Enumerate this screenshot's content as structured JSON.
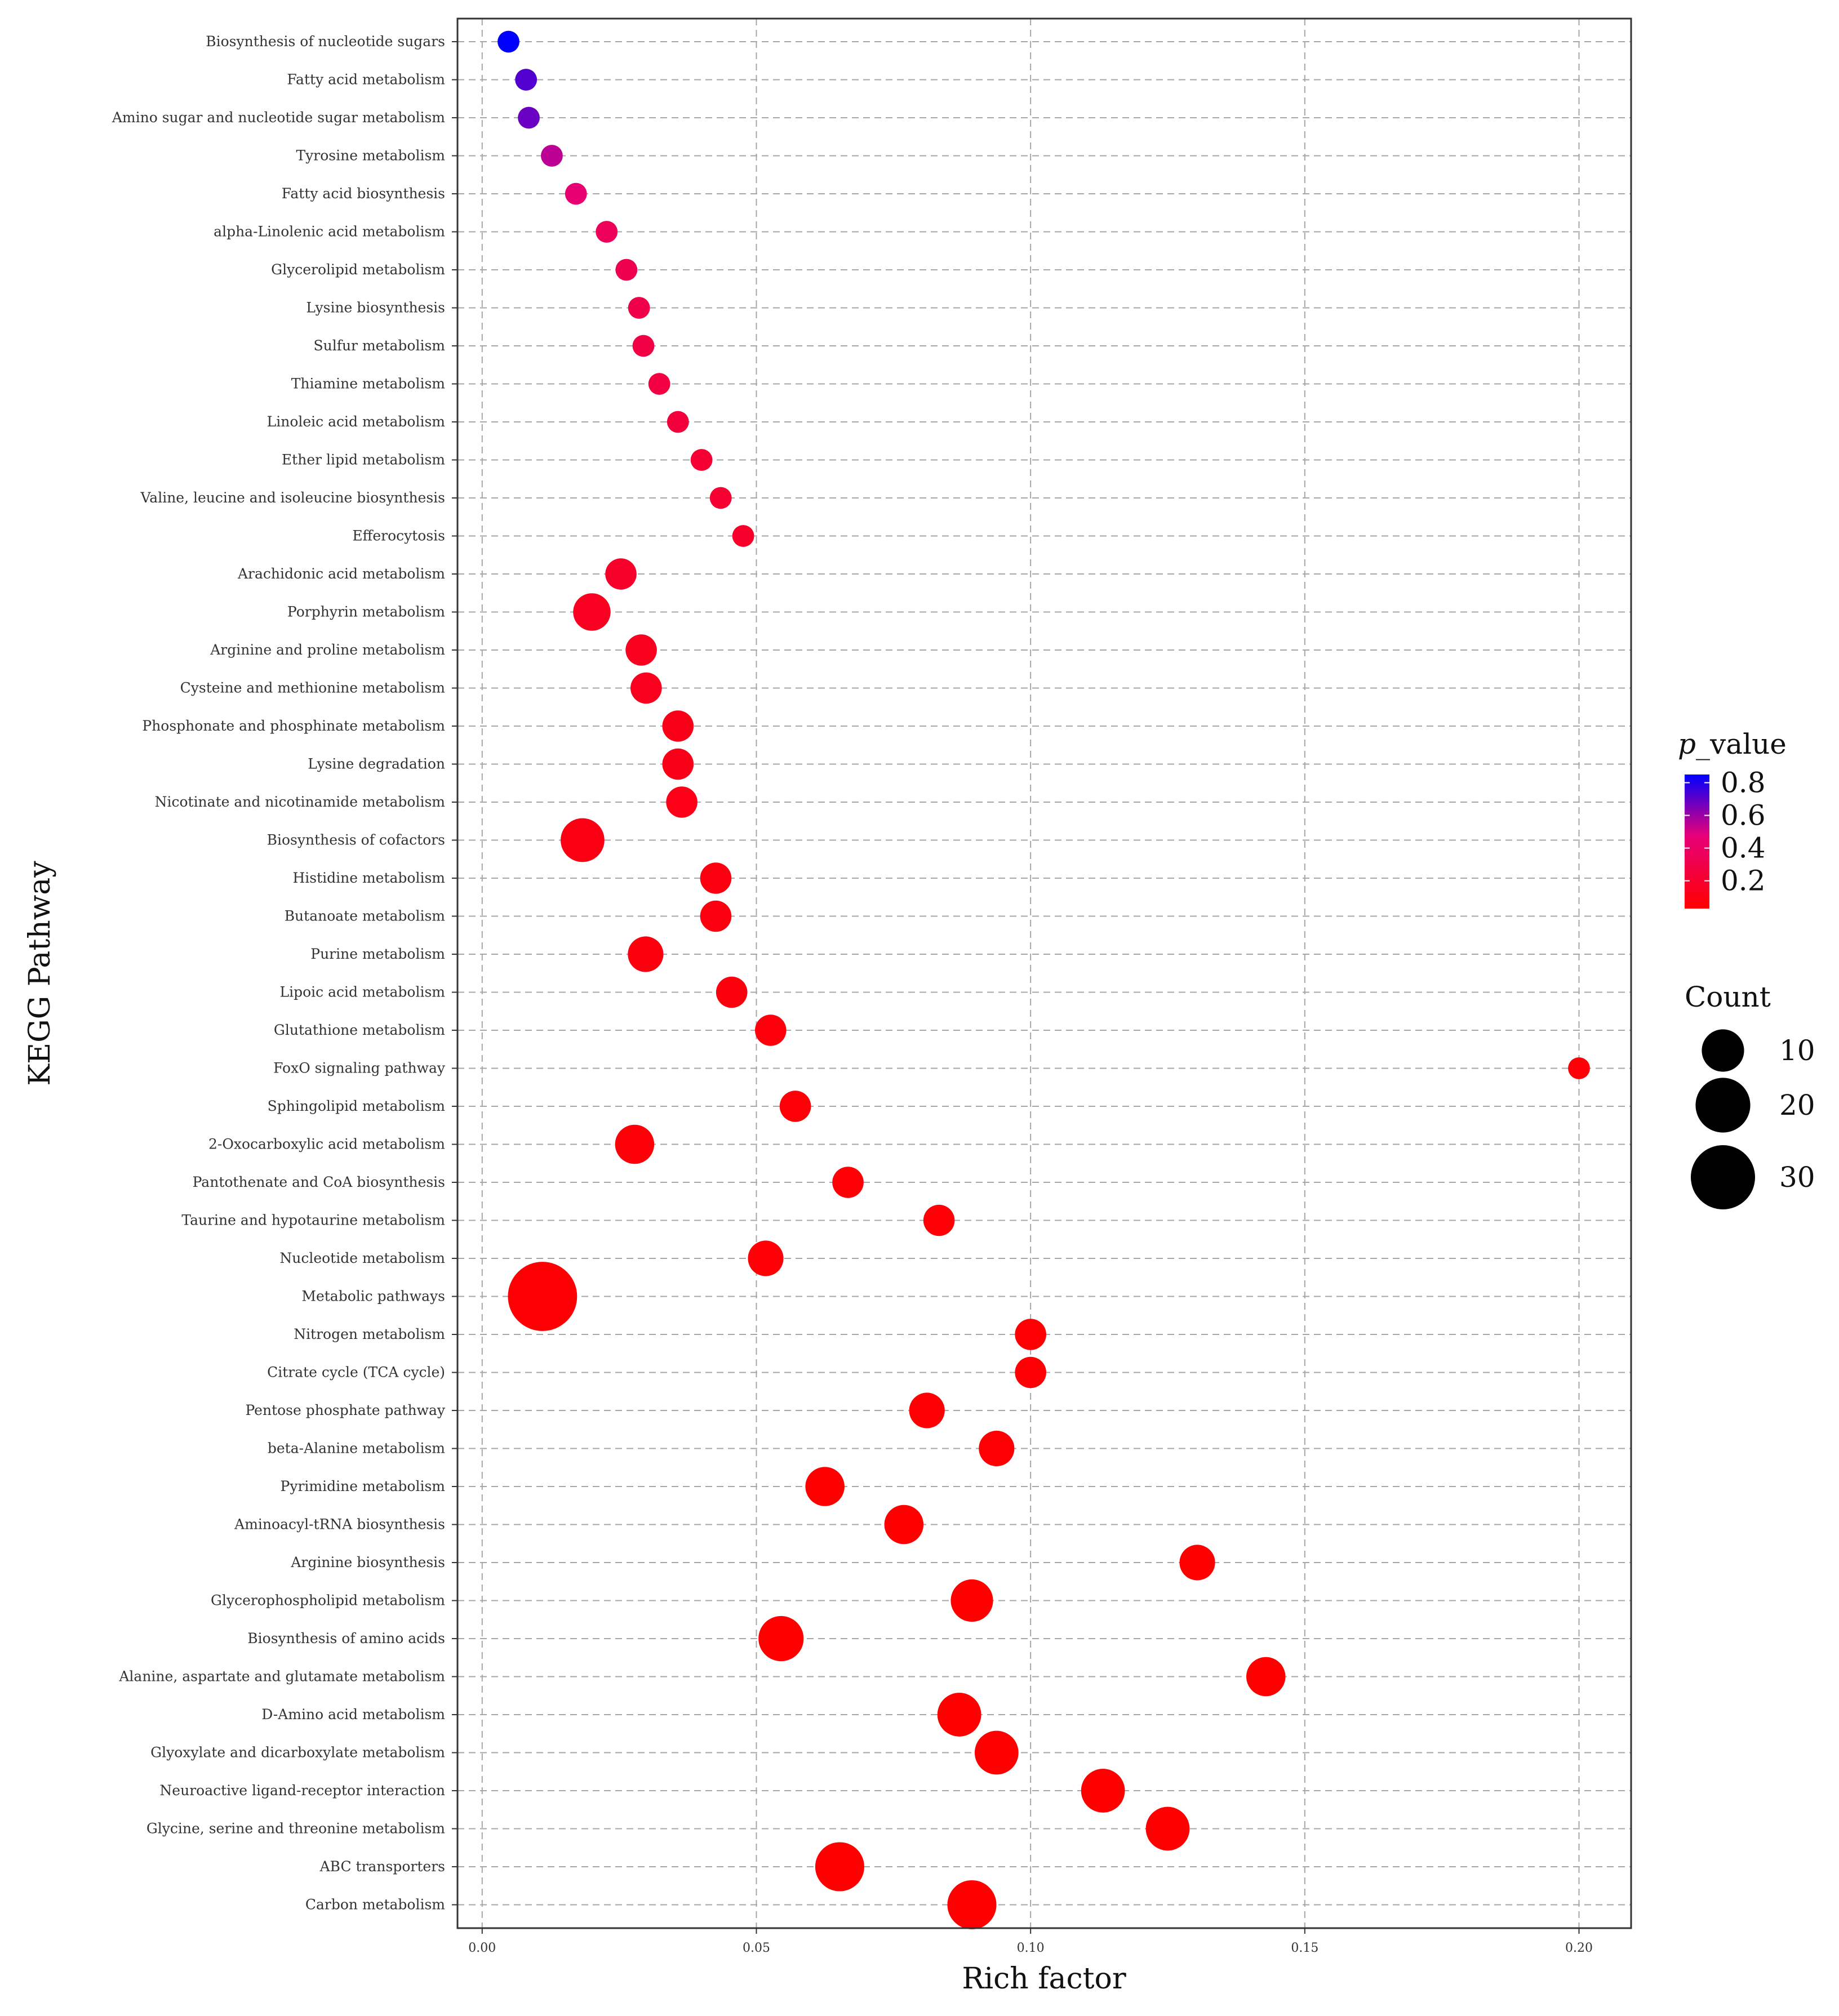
{
  "chart_data": {
    "type": "scatter",
    "title": "",
    "xlabel": "Rich factor",
    "ylabel": "KEGG Pathway",
    "xlim": [
      -0.0045,
      0.2095
    ],
    "x_ticks": [
      0.0,
      0.05,
      0.1,
      0.15,
      0.2
    ],
    "x_tick_labels": [
      "0.00",
      "0.05",
      "0.10",
      "0.15",
      "0.20"
    ],
    "grid": true,
    "legend_position": "right",
    "color_legend": {
      "title_italic": "p",
      "title_rest": "_value",
      "range": [
        0.03,
        0.85
      ],
      "labels": [
        "0.8",
        "0.6",
        "0.4",
        "0.2"
      ],
      "values": [
        0.8,
        0.6,
        0.4,
        0.2
      ],
      "low_color": "#ff0000",
      "mid_color": "#e6007a",
      "high_color": "#0000ff"
    },
    "size_legend": {
      "title": "Count",
      "labels": [
        "10",
        "20",
        "30"
      ],
      "values": [
        10,
        20,
        30
      ]
    },
    "points": [
      {
        "pathway": "Biosynthesis of nucleotide sugars",
        "rich_factor": 0.0048,
        "count": 1,
        "p_value": 0.85
      },
      {
        "pathway": "Fatty acid metabolism",
        "rich_factor": 0.008,
        "count": 1,
        "p_value": 0.72
      },
      {
        "pathway": "Amino sugar and nucleotide sugar metabolism",
        "rich_factor": 0.0085,
        "count": 1,
        "p_value": 0.68
      },
      {
        "pathway": "Tyrosine metabolism",
        "rich_factor": 0.0127,
        "count": 1,
        "p_value": 0.55
      },
      {
        "pathway": "Fatty acid biosynthesis",
        "rich_factor": 0.0171,
        "count": 1,
        "p_value": 0.45
      },
      {
        "pathway": "alpha-Linolenic acid metabolism",
        "rich_factor": 0.0227,
        "count": 1,
        "p_value": 0.36
      },
      {
        "pathway": "Glycerolipid metabolism",
        "rich_factor": 0.0263,
        "count": 1,
        "p_value": 0.32
      },
      {
        "pathway": "Lysine biosynthesis",
        "rich_factor": 0.0286,
        "count": 1,
        "p_value": 0.3
      },
      {
        "pathway": "Sulfur metabolism",
        "rich_factor": 0.0294,
        "count": 1,
        "p_value": 0.29
      },
      {
        "pathway": "Thiamine metabolism",
        "rich_factor": 0.0323,
        "count": 1,
        "p_value": 0.27
      },
      {
        "pathway": "Linoleic acid metabolism",
        "rich_factor": 0.0357,
        "count": 1,
        "p_value": 0.25
      },
      {
        "pathway": "Ether lipid metabolism",
        "rich_factor": 0.04,
        "count": 1,
        "p_value": 0.22
      },
      {
        "pathway": "Valine, leucine and isoleucine biosynthesis",
        "rich_factor": 0.0435,
        "count": 1,
        "p_value": 0.21
      },
      {
        "pathway": "Efferocytosis",
        "rich_factor": 0.0476,
        "count": 1,
        "p_value": 0.19
      },
      {
        "pathway": "Arachidonic acid metabolism",
        "rich_factor": 0.0253,
        "count": 4,
        "p_value": 0.18
      },
      {
        "pathway": "Porphyrin metabolism",
        "rich_factor": 0.02,
        "count": 7,
        "p_value": 0.15
      },
      {
        "pathway": "Arginine and proline metabolism",
        "rich_factor": 0.029,
        "count": 4,
        "p_value": 0.14
      },
      {
        "pathway": "Cysteine and methionine metabolism",
        "rich_factor": 0.0299,
        "count": 4,
        "p_value": 0.14
      },
      {
        "pathway": "Phosphonate and phosphinate metabolism",
        "rich_factor": 0.0357,
        "count": 4,
        "p_value": 0.12
      },
      {
        "pathway": "Lysine degradation",
        "rich_factor": 0.0357,
        "count": 4,
        "p_value": 0.12
      },
      {
        "pathway": "Nicotinate and nicotinamide metabolism",
        "rich_factor": 0.0364,
        "count": 4,
        "p_value": 0.11
      },
      {
        "pathway": "Biosynthesis of cofactors",
        "rich_factor": 0.0183,
        "count": 11,
        "p_value": 0.1
      },
      {
        "pathway": "Histidine metabolism",
        "rich_factor": 0.0426,
        "count": 4,
        "p_value": 0.09
      },
      {
        "pathway": "Butanoate metabolism",
        "rich_factor": 0.0426,
        "count": 4,
        "p_value": 0.09
      },
      {
        "pathway": "Purine metabolism",
        "rich_factor": 0.0298,
        "count": 6,
        "p_value": 0.08
      },
      {
        "pathway": "Lipoic acid metabolism",
        "rich_factor": 0.0455,
        "count": 4,
        "p_value": 0.08
      },
      {
        "pathway": "Glutathione metabolism",
        "rich_factor": 0.0526,
        "count": 4,
        "p_value": 0.07
      },
      {
        "pathway": "FoxO signaling pathway",
        "rich_factor": 0.2,
        "count": 1,
        "p_value": 0.06
      },
      {
        "pathway": "Sphingolipid metabolism",
        "rich_factor": 0.0571,
        "count": 4,
        "p_value": 0.06
      },
      {
        "pathway": "2-Oxocarboxylic acid metabolism",
        "rich_factor": 0.0278,
        "count": 8,
        "p_value": 0.06
      },
      {
        "pathway": "Pantothenate and CoA biosynthesis",
        "rich_factor": 0.0667,
        "count": 4,
        "p_value": 0.05
      },
      {
        "pathway": "Taurine and hypotaurine metabolism",
        "rich_factor": 0.0833,
        "count": 4,
        "p_value": 0.05
      },
      {
        "pathway": "Nucleotide metabolism",
        "rich_factor": 0.0517,
        "count": 6,
        "p_value": 0.05
      },
      {
        "pathway": "Metabolic pathways",
        "rich_factor": 0.011,
        "count": 36,
        "p_value": 0.04
      },
      {
        "pathway": "Nitrogen metabolism",
        "rich_factor": 0.1,
        "count": 4,
        "p_value": 0.04
      },
      {
        "pathway": "Citrate cycle (TCA cycle)",
        "rich_factor": 0.1,
        "count": 4,
        "p_value": 0.04
      },
      {
        "pathway": "Pentose phosphate pathway",
        "rich_factor": 0.0811,
        "count": 6,
        "p_value": 0.04
      },
      {
        "pathway": "beta-Alanine metabolism",
        "rich_factor": 0.0938,
        "count": 6,
        "p_value": 0.04
      },
      {
        "pathway": "Pyrimidine metabolism",
        "rich_factor": 0.0625,
        "count": 8,
        "p_value": 0.03
      },
      {
        "pathway": "Aminoacyl-tRNA biosynthesis",
        "rich_factor": 0.0769,
        "count": 8,
        "p_value": 0.03
      },
      {
        "pathway": "Arginine biosynthesis",
        "rich_factor": 0.1304,
        "count": 6,
        "p_value": 0.03
      },
      {
        "pathway": "Glycerophospholipid metabolism",
        "rich_factor": 0.0893,
        "count": 10,
        "p_value": 0.03
      },
      {
        "pathway": "Biosynthesis of amino acids",
        "rich_factor": 0.0545,
        "count": 12,
        "p_value": 0.03
      },
      {
        "pathway": "Alanine, aspartate and glutamate metabolism",
        "rich_factor": 0.1429,
        "count": 8,
        "p_value": 0.03
      },
      {
        "pathway": "D-Amino acid metabolism",
        "rich_factor": 0.087,
        "count": 11,
        "p_value": 0.03
      },
      {
        "pathway": "Glyoxylate and dicarboxylate metabolism",
        "rich_factor": 0.0938,
        "count": 11,
        "p_value": 0.03
      },
      {
        "pathway": "Neuroactive ligand-receptor interaction",
        "rich_factor": 0.1132,
        "count": 11,
        "p_value": 0.03
      },
      {
        "pathway": "Glycine, serine and threonine metabolism",
        "rich_factor": 0.125,
        "count": 11,
        "p_value": 0.03
      },
      {
        "pathway": "ABC transporters",
        "rich_factor": 0.0652,
        "count": 15,
        "p_value": 0.03
      },
      {
        "pathway": "Carbon metabolism",
        "rich_factor": 0.0893,
        "count": 15,
        "p_value": 0.03
      }
    ]
  }
}
